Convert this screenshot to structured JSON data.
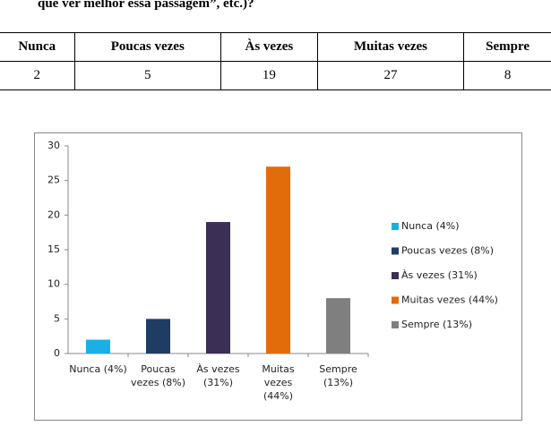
{
  "header": {
    "title": "que ver melhor essa passagem”, etc.)?"
  },
  "table": {
    "header": [
      "Nunca",
      "Poucas vezes",
      "Às vezes",
      "Muitas vezes",
      "Sempre"
    ],
    "rows": [
      [
        2,
        5,
        19,
        27,
        8
      ]
    ]
  },
  "chart_data": {
    "type": "bar",
    "categories": [
      "Nunca (4%)",
      "Poucas vezes (8%)",
      "Às vezes (31%)",
      "Muitas vezes (44%)",
      "Sempre (13%)"
    ],
    "values": [
      2,
      5,
      19,
      27,
      8
    ],
    "colors": [
      "#1ab0e6",
      "#1f3d63",
      "#3b2f55",
      "#e36c0a",
      "#7f7f7f"
    ],
    "ylim": [
      0,
      30
    ],
    "yticks": [
      0,
      5,
      10,
      15,
      20,
      25,
      30
    ],
    "grid": false,
    "legend": "right"
  }
}
